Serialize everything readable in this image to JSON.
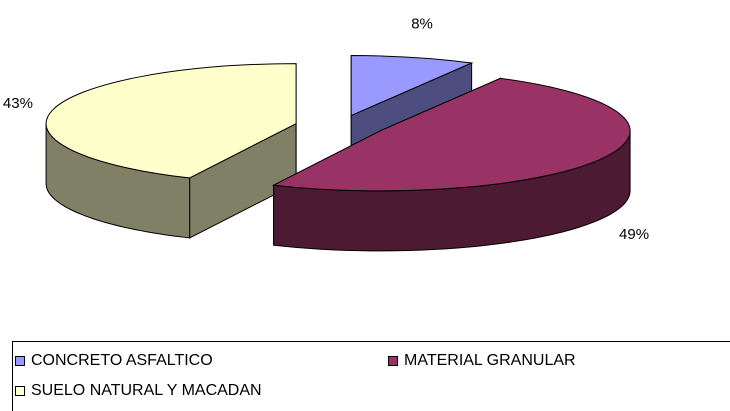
{
  "chart_data": {
    "type": "pie",
    "title": "",
    "categories": [
      "CONCRETO ASFALTICO",
      "MATERIAL GRANULAR",
      "SUELO NATURAL Y MACADAN"
    ],
    "values": [
      8,
      49,
      43
    ],
    "data_labels": [
      "8%",
      "49%",
      "43%"
    ],
    "colors": [
      "#9999FF",
      "#993366",
      "#FFFFCC"
    ],
    "legend_placement": "bottom",
    "exploded": true,
    "three_d": true
  },
  "legend": {
    "items": [
      {
        "label": "CONCRETO ASFALTICO",
        "color": "#9999FF"
      },
      {
        "label": "MATERIAL GRANULAR",
        "color": "#993366"
      },
      {
        "label": "SUELO NATURAL Y MACADAN",
        "color": "#FFFFCC"
      }
    ]
  }
}
